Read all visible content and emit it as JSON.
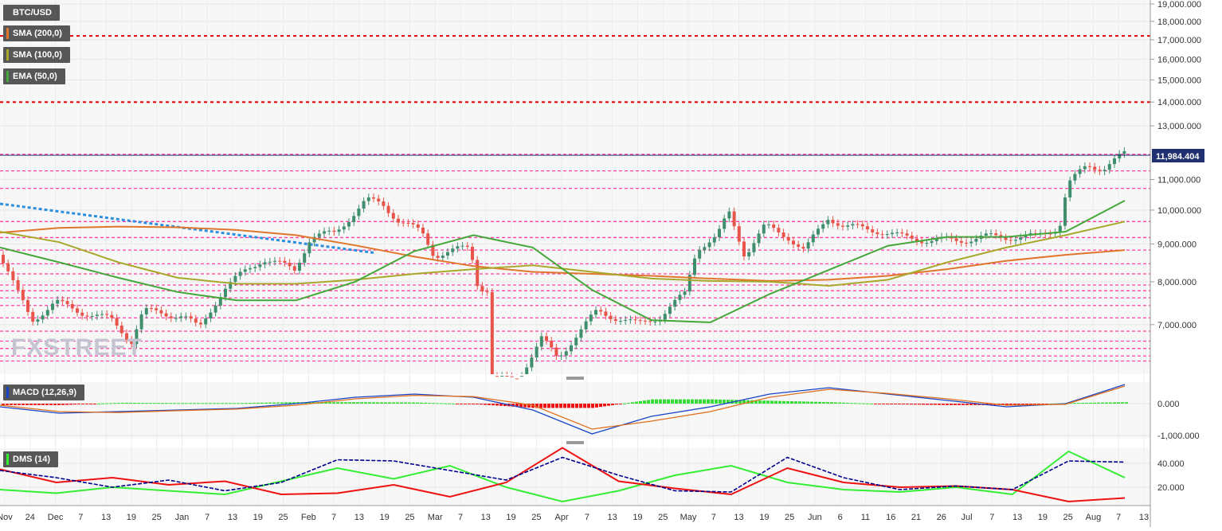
{
  "header": {
    "symbol": "BTC/USD",
    "price_label": "11,984.404",
    "watermark": "FXSTREET"
  },
  "legend": {
    "sma200": "SMA (200,0)",
    "sma100": "SMA (100,0)",
    "ema50": "EMA (50,0)",
    "macd": "MACD (12,26,9)",
    "dms": "DMS (14)"
  },
  "colors": {
    "bull": "#3f8f6e",
    "bear": "#e8534a",
    "sma200": "#e0762b",
    "sma100": "#a8a82a",
    "ema50": "#45a73a",
    "resistance_dash": "#e60000",
    "level_dash": "#ff3fa4",
    "trend_dash": "#2b8fe0",
    "macd_line": "#1a44c8",
    "signal_line": "#e07020",
    "hist_pos": "#33dd33",
    "hist_neg": "#ee1111",
    "dms_plus": "#33ee33",
    "dms_minus": "#ee1111",
    "adx": "#00008b"
  },
  "chart_data": [
    {
      "type": "candlestick",
      "title": "BTC/USD",
      "y_ticks": [
        "19,000.000",
        "18,000.000",
        "17,000.000",
        "16,000.000",
        "15,000.000",
        "14,000.000",
        "13,000.000",
        "11,000.000",
        "10,000.000",
        "9,000.000",
        "8,000.000",
        "7,000.000"
      ],
      "last_price": 11984.404,
      "resistance_levels": [
        17200,
        14000
      ],
      "support_levels": [
        11900,
        11300,
        10700,
        9650,
        9180,
        8830,
        8460,
        8200,
        7920,
        7780,
        7610,
        7430,
        7150,
        6860,
        6650,
        6500,
        6350,
        6250
      ],
      "trendline": {
        "from": [
          "Nov 1",
          10200
        ],
        "to": [
          "Feb 13",
          8750
        ]
      },
      "sma200_approx": [
        9320,
        9460,
        9500,
        9480,
        9400,
        9250,
        8960,
        8650,
        8400,
        8250,
        8200,
        8150,
        8080,
        8020,
        8050,
        8150,
        8320,
        8540,
        8700,
        8830
      ],
      "sma100_approx": [
        9350,
        9050,
        8500,
        8100,
        7950,
        7950,
        8050,
        8200,
        8320,
        8420,
        8250,
        8080,
        8020,
        8000,
        7900,
        8050,
        8500,
        8900,
        9250,
        9650
      ],
      "ema50_approx": [
        8900,
        8500,
        8100,
        7750,
        7550,
        7550,
        8000,
        8800,
        9250,
        8900,
        7800,
        7100,
        7050,
        7700,
        8300,
        8950,
        9200,
        9200,
        9350,
        10300
      ]
    },
    {
      "type": "line",
      "title": "MACD (12,26,9)",
      "y_ticks": [
        "0.000",
        "-1,000.000"
      ],
      "series": [
        {
          "name": "MACD",
          "values": [
            -100,
            -300,
            -250,
            -200,
            -150,
            0,
            200,
            300,
            200,
            -200,
            -950,
            -400,
            -100,
            300,
            500,
            300,
            100,
            -100,
            0,
            600
          ]
        },
        {
          "name": "Signal",
          "values": [
            -50,
            -250,
            -280,
            -220,
            -170,
            -50,
            150,
            260,
            220,
            -50,
            -800,
            -550,
            -250,
            200,
            450,
            320,
            150,
            -50,
            -20,
            550
          ]
        }
      ]
    },
    {
      "type": "line",
      "title": "DMS (14)",
      "y_ticks": [
        "40.000",
        "20.000"
      ],
      "series": [
        {
          "name": "+DI",
          "values": [
            18,
            15,
            20,
            17,
            14,
            25,
            36,
            27,
            38,
            20,
            8,
            17,
            30,
            38,
            24,
            18,
            16,
            20,
            14,
            50,
            28
          ]
        },
        {
          "name": "-DI",
          "values": [
            35,
            24,
            28,
            22,
            25,
            14,
            15,
            22,
            12,
            24,
            53,
            25,
            19,
            14,
            36,
            24,
            20,
            21,
            18,
            8,
            11
          ]
        },
        {
          "name": "ADX",
          "values": [
            34,
            28,
            20,
            26,
            17,
            24,
            43,
            42,
            34,
            26,
            45,
            30,
            17,
            16,
            45,
            28,
            18,
            21,
            18,
            42,
            41
          ]
        }
      ]
    }
  ],
  "x_axis": {
    "labels": [
      "Nov",
      "24",
      "Dec",
      "7",
      "13",
      "19",
      "25",
      "Jan",
      "7",
      "13",
      "19",
      "25",
      "Feb",
      "7",
      "13",
      "19",
      "25",
      "Mar",
      "7",
      "13",
      "19",
      "25",
      "Apr",
      "7",
      "13",
      "19",
      "25",
      "May",
      "7",
      "13",
      "19",
      "25",
      "Jun",
      "6",
      "11",
      "16",
      "21",
      "26",
      "Jul",
      "7",
      "13",
      "19",
      "25",
      "Aug",
      "7",
      "13"
    ]
  }
}
